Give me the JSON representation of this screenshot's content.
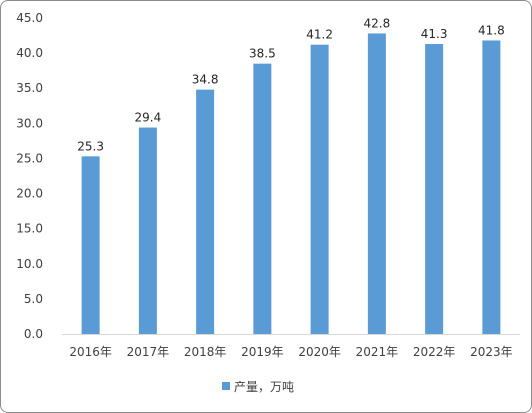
{
  "chart_data": {
    "type": "bar",
    "categories": [
      "2016年",
      "2017年",
      "2018年",
      "2019年",
      "2020年",
      "2021年",
      "2022年",
      "2023年"
    ],
    "series": [
      {
        "name": "产量，万吨",
        "values": [
          25.3,
          29.4,
          34.8,
          38.5,
          41.2,
          42.8,
          41.3,
          41.8
        ],
        "color": "#5b9bd5"
      }
    ],
    "data_labels": [
      "25.3",
      "29.4",
      "34.8",
      "38.5",
      "41.2",
      "42.8",
      "41.3",
      "41.8"
    ],
    "ylim": [
      0,
      45
    ],
    "ytick_labels": [
      "0.0",
      "5.0",
      "10.0",
      "15.0",
      "20.0",
      "25.0",
      "30.0",
      "35.0",
      "40.0",
      "45.0"
    ],
    "xlabel": "",
    "ylabel": "",
    "title": "",
    "grid": false,
    "legend_position": "bottom"
  }
}
